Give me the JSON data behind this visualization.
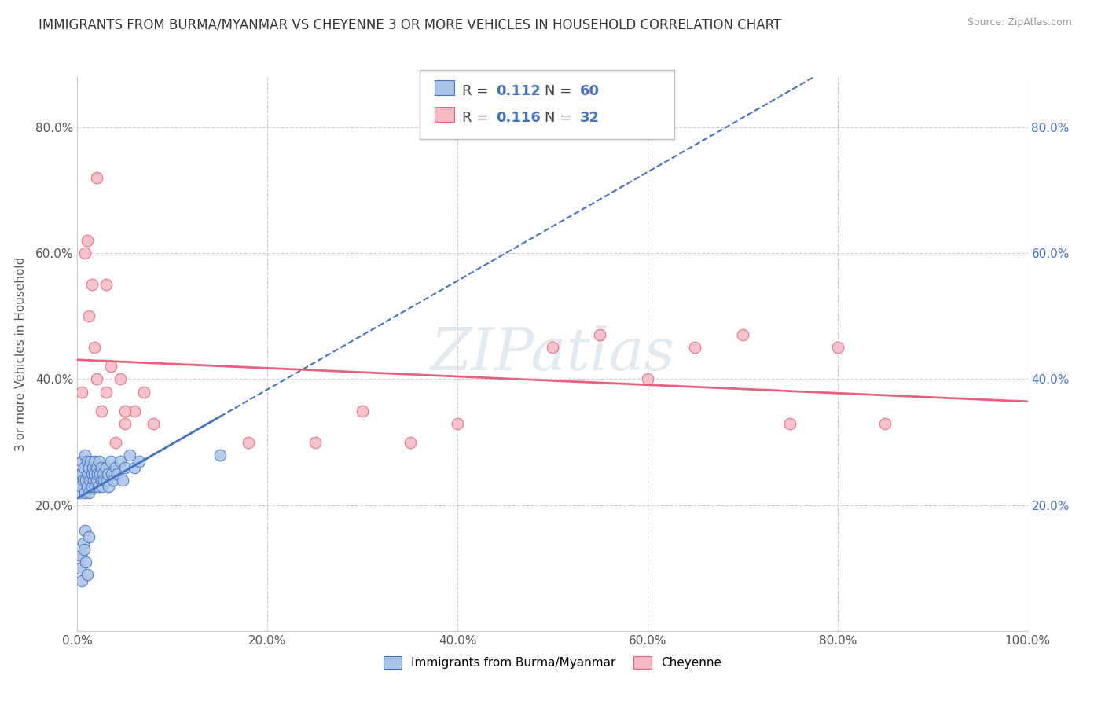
{
  "title": "IMMIGRANTS FROM BURMA/MYANMAR VS CHEYENNE 3 OR MORE VEHICLES IN HOUSEHOLD CORRELATION CHART",
  "source": "Source: ZipAtlas.com",
  "ylabel": "3 or more Vehicles in Household",
  "xlim": [
    0.0,
    1.0
  ],
  "ylim": [
    0.0,
    0.88
  ],
  "x_tick_labels": [
    "0.0%",
    "20.0%",
    "40.0%",
    "60.0%",
    "80.0%",
    "100.0%"
  ],
  "x_tick_vals": [
    0.0,
    0.2,
    0.4,
    0.6,
    0.8,
    1.0
  ],
  "y_tick_labels": [
    "20.0%",
    "40.0%",
    "60.0%",
    "80.0%"
  ],
  "y_tick_vals": [
    0.2,
    0.4,
    0.6,
    0.8
  ],
  "grid_color": "#cccccc",
  "background_color": "#ffffff",
  "series1_label": "Immigrants from Burma/Myanmar",
  "series1_color": "#aac4e8",
  "series1_line_color": "#4472c4",
  "series1_R": 0.112,
  "series1_N": 60,
  "series2_label": "Cheyenne",
  "series2_color": "#f5b8c4",
  "series2_line_color": "#e8607a",
  "series2_R": 0.116,
  "series2_N": 32,
  "series1_x": [
    0.002,
    0.003,
    0.004,
    0.005,
    0.005,
    0.006,
    0.007,
    0.008,
    0.008,
    0.009,
    0.01,
    0.01,
    0.011,
    0.012,
    0.012,
    0.013,
    0.014,
    0.015,
    0.015,
    0.016,
    0.017,
    0.018,
    0.018,
    0.019,
    0.02,
    0.02,
    0.021,
    0.022,
    0.023,
    0.024,
    0.025,
    0.025,
    0.026,
    0.027,
    0.028,
    0.03,
    0.031,
    0.032,
    0.033,
    0.035,
    0.036,
    0.038,
    0.04,
    0.042,
    0.045,
    0.048,
    0.05,
    0.055,
    0.06,
    0.065,
    0.003,
    0.004,
    0.005,
    0.006,
    0.007,
    0.008,
    0.009,
    0.01,
    0.012,
    0.15
  ],
  "series1_y": [
    0.22,
    0.25,
    0.23,
    0.25,
    0.27,
    0.24,
    0.26,
    0.22,
    0.28,
    0.24,
    0.23,
    0.27,
    0.25,
    0.22,
    0.26,
    0.24,
    0.27,
    0.25,
    0.23,
    0.26,
    0.24,
    0.25,
    0.27,
    0.23,
    0.26,
    0.24,
    0.25,
    0.23,
    0.27,
    0.25,
    0.24,
    0.26,
    0.23,
    0.25,
    0.24,
    0.26,
    0.24,
    0.25,
    0.23,
    0.27,
    0.25,
    0.24,
    0.26,
    0.25,
    0.27,
    0.24,
    0.26,
    0.28,
    0.26,
    0.27,
    0.1,
    0.12,
    0.08,
    0.14,
    0.13,
    0.16,
    0.11,
    0.09,
    0.15,
    0.28
  ],
  "series2_x": [
    0.005,
    0.008,
    0.01,
    0.012,
    0.015,
    0.018,
    0.02,
    0.025,
    0.03,
    0.035,
    0.04,
    0.045,
    0.05,
    0.06,
    0.07,
    0.08,
    0.3,
    0.35,
    0.4,
    0.5,
    0.55,
    0.6,
    0.65,
    0.7,
    0.75,
    0.8,
    0.85,
    0.02,
    0.03,
    0.05,
    0.18,
    0.25
  ],
  "series2_y": [
    0.38,
    0.6,
    0.62,
    0.5,
    0.55,
    0.45,
    0.4,
    0.35,
    0.38,
    0.42,
    0.3,
    0.4,
    0.33,
    0.35,
    0.38,
    0.33,
    0.35,
    0.3,
    0.33,
    0.45,
    0.47,
    0.4,
    0.45,
    0.47,
    0.33,
    0.45,
    0.33,
    0.72,
    0.55,
    0.35,
    0.3,
    0.3
  ],
  "title_fontsize": 12,
  "label_fontsize": 11,
  "tick_fontsize": 11,
  "legend_fontsize": 13
}
